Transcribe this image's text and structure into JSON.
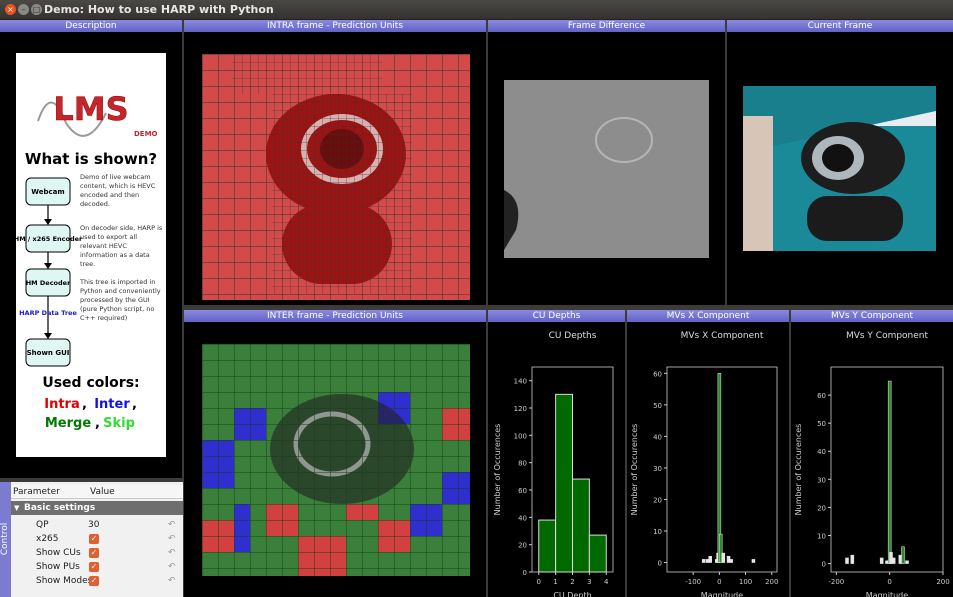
{
  "window": {
    "title": "Demo: How to use HARP with Python",
    "close": "×",
    "min": "–",
    "max": "□"
  },
  "panels": {
    "description": "Description",
    "intra": "INTRA frame - Prediction Units",
    "diff": "Frame Difference",
    "current": "Current Frame",
    "inter": "INTER frame - Prediction Units",
    "cu": "CU Depths",
    "mvx": "MVs X Component",
    "mvy": "MVs Y Component"
  },
  "description": {
    "logo": "LMS",
    "logo_sub": "DEMO",
    "heading": "What is shown?",
    "flow": [
      "Webcam",
      "HM / x265 Encoder",
      "HM Decoder",
      "HARP Data Tree",
      "Shown GUI"
    ],
    "text1": "Demo of live webcam content, which is HEVC encoded and then decoded.",
    "text2": "On decoder side, HARP is used to export all relevant HEVC information as a data tree.",
    "text3": "This tree is imported in Python and conveniently processed by the GUI (pure Python script, no C++ required)",
    "colors_heading": "Used colors:",
    "c_intra": "Intra",
    "c_inter": "Inter",
    "c_merge": "Merge",
    "c_skip": "Skip",
    "sep1": ",",
    "sep2": ",",
    "sep3": ","
  },
  "control": {
    "side_label": "Control",
    "col_param": "Parameter",
    "col_value": "Value",
    "group": "Basic settings",
    "rows": [
      {
        "name": "QP",
        "value": "30"
      },
      {
        "name": "x265",
        "checked": true
      },
      {
        "name": "Show CUs",
        "checked": true
      },
      {
        "name": "Show PUs",
        "checked": true
      },
      {
        "name": "Show Modes",
        "checked": true
      }
    ]
  },
  "chart_data": [
    {
      "type": "bar",
      "title": "CU Depths",
      "xlabel": "CU Depth",
      "ylabel": "Number of Occurences",
      "xlim": [
        -0.4,
        4.4
      ],
      "ylim": [
        0,
        150
      ],
      "xticks": [
        0,
        1,
        2,
        3,
        4
      ],
      "yticks": [
        0,
        20,
        40,
        60,
        80,
        100,
        120,
        140
      ],
      "bins": [
        {
          "x0": 0,
          "x1": 1,
          "y": 38
        },
        {
          "x0": 1,
          "x1": 2,
          "y": 130
        },
        {
          "x0": 2,
          "x1": 3,
          "y": 68
        },
        {
          "x0": 3,
          "x1": 4,
          "y": 27
        }
      ]
    },
    {
      "type": "bar",
      "title": "MVs X Component",
      "xlabel": "Magnitude",
      "ylabel": "Number of Occurences",
      "xlim": [
        -200,
        220
      ],
      "ylim": [
        -3,
        62
      ],
      "xticks": [
        -100,
        0,
        100,
        200
      ],
      "yticks": [
        0,
        10,
        20,
        30,
        40,
        50,
        60
      ],
      "bins": [
        {
          "x": -60,
          "y": 1
        },
        {
          "x": -45,
          "y": 1
        },
        {
          "x": -35,
          "y": 2
        },
        {
          "x": -10,
          "y": 1
        },
        {
          "x": -5,
          "y": 3
        },
        {
          "x": 0,
          "y": 60
        },
        {
          "x": 5,
          "y": 9
        },
        {
          "x": 15,
          "y": 3
        },
        {
          "x": 35,
          "y": 2
        },
        {
          "x": 45,
          "y": 1
        },
        {
          "x": 130,
          "y": 1
        }
      ]
    },
    {
      "type": "bar",
      "title": "MVs Y Component",
      "xlabel": "Magnitude",
      "ylabel": "Number of Occurences",
      "xlim": [
        -220,
        200
      ],
      "ylim": [
        -3,
        70
      ],
      "xticks": [
        -200,
        0,
        200
      ],
      "yticks": [
        0,
        10,
        20,
        30,
        40,
        50,
        60
      ],
      "bins": [
        {
          "x": -160,
          "y": 2
        },
        {
          "x": -140,
          "y": 3
        },
        {
          "x": -30,
          "y": 2
        },
        {
          "x": -10,
          "y": 1
        },
        {
          "x": 0,
          "y": 65
        },
        {
          "x": 5,
          "y": 4
        },
        {
          "x": 15,
          "y": 2
        },
        {
          "x": 40,
          "y": 3
        },
        {
          "x": 50,
          "y": 6
        },
        {
          "x": 65,
          "y": 1
        }
      ]
    }
  ]
}
